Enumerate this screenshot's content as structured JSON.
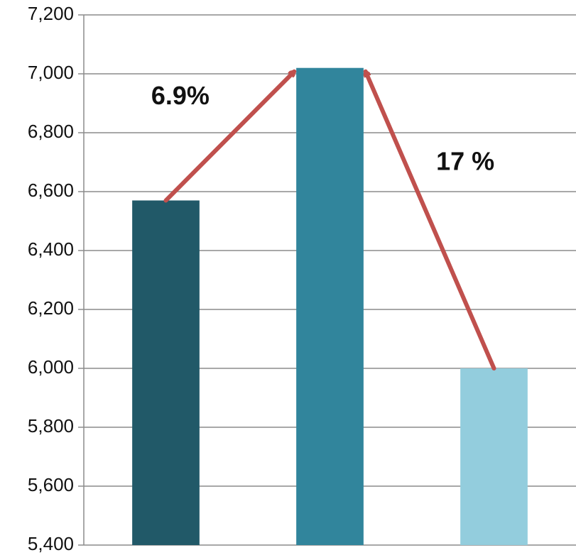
{
  "chart_data": {
    "type": "bar",
    "title": "",
    "xlabel": "",
    "ylabel": "",
    "categories": [
      "",
      "",
      ""
    ],
    "values": [
      6570,
      7020,
      6000
    ],
    "ylim": [
      5400,
      7200
    ],
    "y_tick_step": 200,
    "y_tick_labels": [
      "5,400",
      "5,600",
      "5,800",
      "6,000",
      "6,200",
      "6,400",
      "6,600",
      "6,800",
      "7,000",
      "7,200"
    ],
    "grid": true,
    "legend": "none",
    "colors": [
      "#215968",
      "#31859c",
      "#93cddd"
    ],
    "annotation_color": "#c0504d",
    "annotations": [
      {
        "text": "6.9%",
        "from_bar": 0,
        "to_bar": 1
      },
      {
        "text": "17 %",
        "from_bar": 2,
        "to_bar": 1
      }
    ]
  }
}
